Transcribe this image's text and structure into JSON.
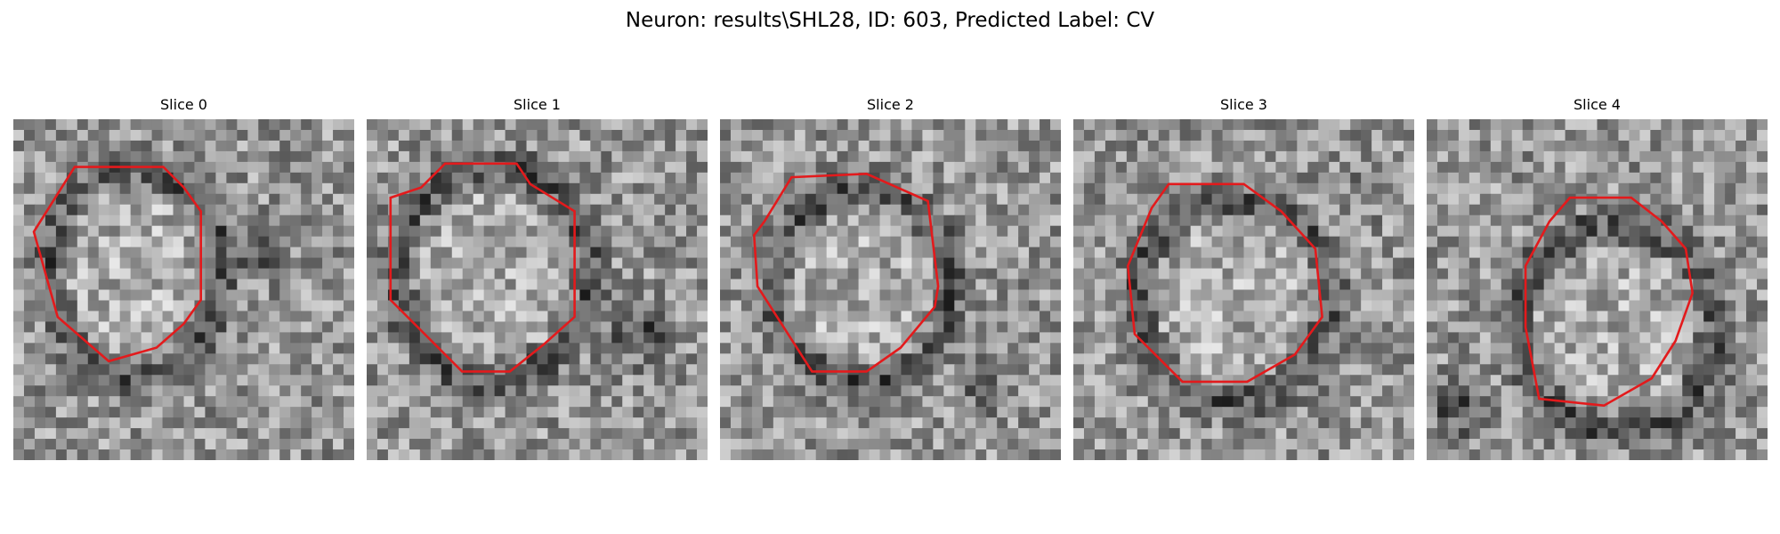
{
  "figure": {
    "title": "Neuron: results\\SHL28, ID: 603, Predicted Label: CV"
  },
  "outline_color": "#e31a1c",
  "slices": [
    {
      "title": "Slice 0"
    },
    {
      "title": "Slice 1"
    },
    {
      "title": "Slice 2"
    },
    {
      "title": "Slice 3"
    },
    {
      "title": "Slice 4"
    }
  ]
}
